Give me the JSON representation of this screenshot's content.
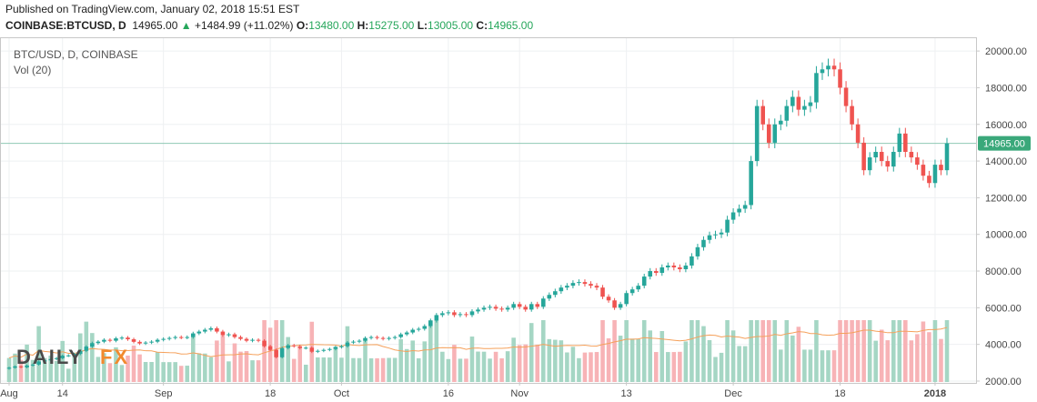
{
  "header": {
    "published": "Published on TradingView.com, January 02, 2018 15:51 EST",
    "symbol": "COINBASE:BTCUSD, D",
    "last": "14965.00",
    "arrow": "▲",
    "change": "+1484.99 (+11.02%)",
    "o_label": "O:",
    "o": "13480.00",
    "h_label": "H:",
    "h": "15275.00",
    "l_label": "L:",
    "l": "13005.00",
    "c_label": "C:",
    "c": "14965.00"
  },
  "legend": {
    "title": "BTC/USD, D, COINBASE",
    "vol": "Vol (20)"
  },
  "watermark": {
    "text_left": "DAILY",
    "text_right": "FX"
  },
  "colors": {
    "up": "#26a69a",
    "down": "#ef5350",
    "up_vol": "#a5d6c4",
    "down_vol": "#f7b3b6",
    "ma": "#f5a05a",
    "price_line": "#8fc9b4",
    "badge": "#3aa87a"
  },
  "chart_data": {
    "type": "candlestick",
    "symbol": "BTC/USD",
    "interval": "D",
    "y_axis": {
      "ticks": [
        "20000.00",
        "18000.00",
        "16000.00",
        "14000.00",
        "12000.00",
        "10000.00",
        "8000.00",
        "6000.00",
        "4000.00",
        "2000.00"
      ],
      "range": [
        1950,
        20700
      ]
    },
    "x_axis": {
      "labels": [
        "Aug",
        "14",
        "Sep",
        "18",
        "Oct",
        "16",
        "Nov",
        "13",
        "Dec",
        "18",
        "2018"
      ]
    },
    "last_price": "14965.00",
    "volume_indicator": "Vol (20)",
    "closes": [
      2730,
      2800,
      2750,
      2850,
      2900,
      3070,
      3130,
      3200,
      3250,
      3380,
      3400,
      3480,
      3650,
      3880,
      4070,
      4150,
      4250,
      4200,
      4330,
      4370,
      4280,
      4140,
      4050,
      4100,
      4150,
      4250,
      4300,
      4350,
      4400,
      4370,
      4400,
      4600,
      4700,
      4800,
      4880,
      4700,
      4500,
      4550,
      4400,
      4300,
      4200,
      4250,
      4200,
      3900,
      3700,
      3300,
      3800,
      3950,
      3900,
      3800,
      3820,
      3600,
      3650,
      3700,
      3750,
      3850,
      3900,
      4100,
      4150,
      4200,
      4350,
      4400,
      4350,
      4300,
      4350,
      4400,
      4550,
      4650,
      4800,
      4850,
      5000,
      5300,
      5600,
      5700,
      5750,
      5600,
      5650,
      5600,
      5800,
      5900,
      6000,
      6050,
      5950,
      5900,
      6000,
      6200,
      6050,
      5900,
      6200,
      6050,
      6500,
      6700,
      6900,
      7100,
      7200,
      7350,
      7400,
      7300,
      7200,
      7100,
      6600,
      6400,
      6000,
      6200,
      6800,
      7000,
      7200,
      7700,
      8000,
      7900,
      8200,
      8300,
      8200,
      8100,
      8300,
      8800,
      9300,
      9700,
      9950,
      10000,
      10100,
      10800,
      11200,
      11400,
      11600,
      14000,
      17000,
      16000,
      15000,
      16000,
      16200,
      17000,
      17500,
      16800,
      17000,
      17200,
      18800,
      19000,
      19200,
      19000,
      18000,
      17000,
      16000,
      15000,
      13500,
      14200,
      14500,
      14000,
      13700,
      14500,
      15500,
      14500,
      14200,
      13800,
      13200,
      12800,
      13800,
      13500,
      14965
    ],
    "volume_scale": "Vol (20)"
  }
}
